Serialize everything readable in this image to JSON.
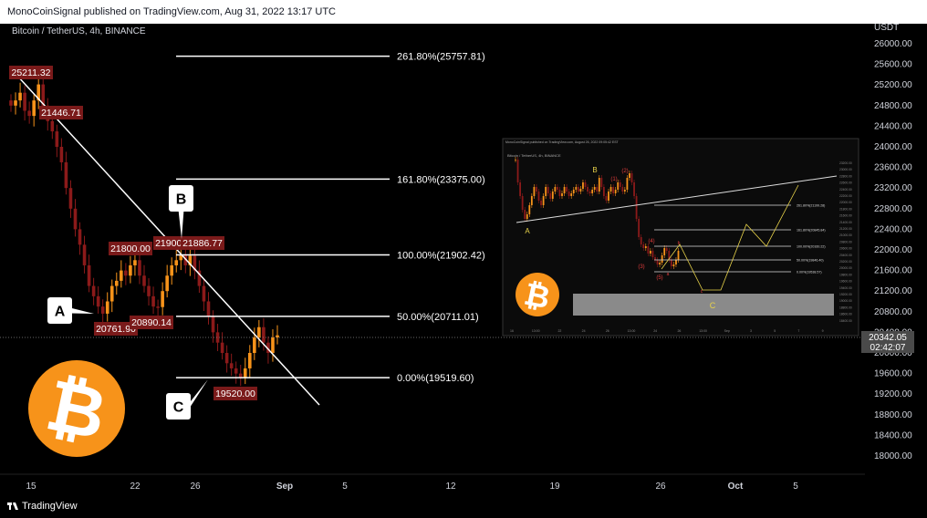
{
  "header": {
    "published": "MonoCoinSignal published on TradingView.com, Aug 31, 2022 13:17 UTC"
  },
  "footer": {
    "brand": "TradingView"
  },
  "colors": {
    "up": "#f7931a",
    "down": "#8b1a1a",
    "fib_line": "#ffffff",
    "trend_line": "#ffffff",
    "bitcoin": "#f7931a",
    "label_bg": "#7a1a1a"
  },
  "chart_data": {
    "type": "candlestick",
    "title": "Bitcoin / TetherUS, 4h, BINANCE",
    "ylabel": "USDT",
    "ylim": [
      17600,
      26400
    ],
    "y_ticks": [
      "26000.00",
      "25600.00",
      "25200.00",
      "24800.00",
      "24400.00",
      "24000.00",
      "23600.00",
      "23200.00",
      "22800.00",
      "22400.00",
      "22000.00",
      "21600.00",
      "21200.00",
      "20800.00",
      "20400.00",
      "20000.00",
      "19600.00",
      "19200.00",
      "18800.00",
      "18400.00",
      "18000.00"
    ],
    "x_ticks": [
      "15",
      "22",
      "26",
      "Sep",
      "5",
      "12",
      "19",
      "26",
      "Oct",
      "5"
    ],
    "last_price": {
      "value": "20342.05",
      "countdown": "02:42:07"
    },
    "price_labels": [
      "25211.32",
      "21446.71",
      "21800.00",
      "21900.00",
      "21886.77",
      "20761.90",
      "20890.14",
      "19520.00"
    ],
    "fib_levels": [
      {
        "label": "261.80%(25757.81)",
        "value": 25757.81
      },
      {
        "label": "161.80%(23375.00)",
        "value": 23375.0
      },
      {
        "label": "100.00%(21902.42)",
        "value": 21902.42
      },
      {
        "label": "50.00%(20711.01)",
        "value": 20711.01
      },
      {
        "label": "0.00%(19519.60)",
        "value": 19519.6
      }
    ],
    "wave_labels": [
      "A",
      "B",
      "C"
    ],
    "close_series": [
      24800,
      24900,
      25050,
      24700,
      24600,
      24900,
      25211,
      24800,
      24500,
      24300,
      24000,
      23700,
      23200,
      22800,
      22400,
      22100,
      21700,
      21300,
      21100,
      20900,
      20762,
      21000,
      21300,
      21400,
      21600,
      21500,
      21700,
      21800,
      21500,
      21300,
      21100,
      20900,
      20890,
      21200,
      21500,
      21700,
      21800,
      21900,
      21700,
      21886,
      21600,
      21300,
      21000,
      20700,
      20400,
      20200,
      20000,
      19800,
      19700,
      19600,
      19520,
      19700,
      20000,
      20300,
      20500,
      20200,
      20000,
      20300,
      20342
    ]
  },
  "inset": {
    "header": "MonoCoinSignal published on TradingView.com, August 26, 2022 09:05:42 EST",
    "title": "Bitcoin / TetherUS, 4h, BINANCE",
    "wave_labels": [
      "A",
      "B",
      "C"
    ],
    "sub_labels": [
      "(1)",
      "(2)",
      "(3)",
      "(4)",
      "(5)",
      "a",
      "b",
      "c"
    ],
    "fib_labels": [
      "261.80%(21199.28)",
      "161.80%(20845.84)",
      "100.00%(20160.22)",
      "50.00%(19846.40)",
      "0.00%(19538.57)"
    ],
    "x_ticks": [
      "16",
      "13:00",
      "22",
      "24",
      "26",
      "13:00",
      "24",
      "26",
      "13:00",
      "Sep",
      "3",
      "5",
      "7",
      "9"
    ],
    "y_ticks": [
      "23200.00",
      "23000.00",
      "22800.00",
      "22600.00",
      "22400.00",
      "22200.00",
      "22000.00",
      "21800.00",
      "21600.00",
      "21400.00",
      "21200.00",
      "21000.00",
      "20800.00",
      "20600.00",
      "20400.00",
      "20200.00",
      "20000.00",
      "19800.00",
      "19600.00",
      "19400.00",
      "19200.00",
      "19000.00",
      "18800.00",
      "18600.00",
      "18400.00"
    ]
  }
}
